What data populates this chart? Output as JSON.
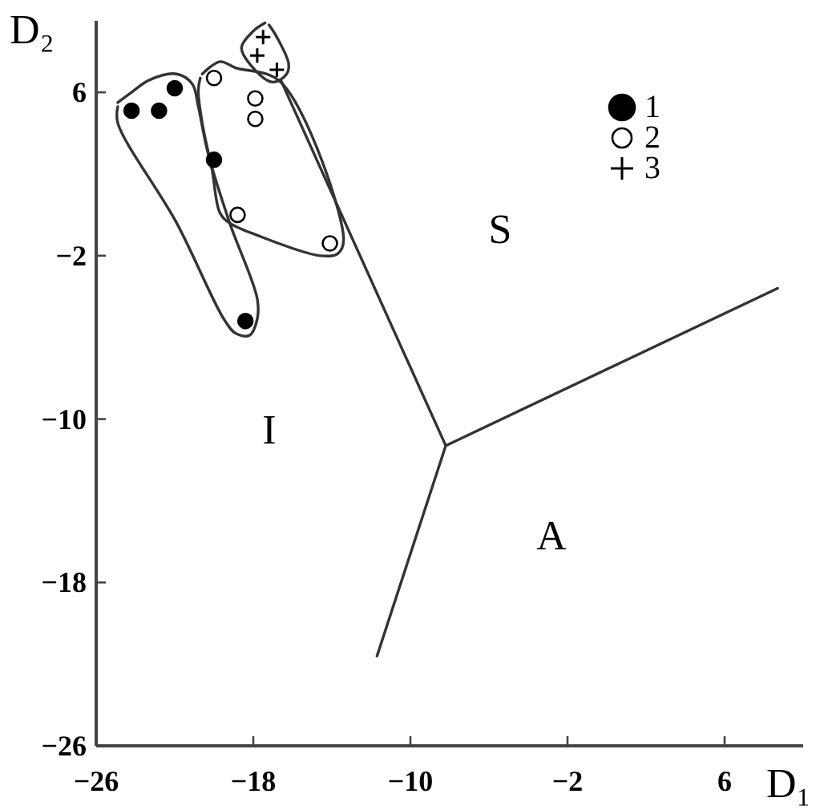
{
  "chart_data": {
    "type": "scatter",
    "xlabel": "D₁",
    "ylabel": "D₂",
    "xlim": [
      -26,
      10
    ],
    "ylim": [
      -26,
      9.5
    ],
    "xticks": [
      -26,
      -18,
      -10,
      -2,
      6
    ],
    "yticks": [
      -26,
      -18,
      -10,
      -2,
      6
    ],
    "legend": "top right",
    "grid": false,
    "series": [
      {
        "name": "1",
        "color": "#000000",
        "marker": "circle",
        "x": [
          -24.2,
          -22.8,
          -22.0,
          -20.0,
          -18.4
        ],
        "values": [
          5.1,
          5.1,
          6.2,
          2.7,
          -5.2
        ]
      },
      {
        "name": "2",
        "color": "#ffffff",
        "marker": "circle",
        "x": [
          -20.0,
          -17.9,
          -17.9,
          -18.8,
          -14.1
        ],
        "values": [
          6.7,
          5.7,
          4.7,
          0.0,
          -1.4
        ]
      },
      {
        "name": "3",
        "color": "#000000",
        "marker": "cross",
        "x": [
          -17.5,
          -17.8,
          -16.8
        ],
        "values": [
          8.7,
          7.8,
          7.1
        ]
      },
      {
        "type": "line",
        "color": "#333333",
        "x": [
          -24.9,
          -24.2,
          -23.3,
          -21.9,
          -21.1,
          -20.8,
          -20.3,
          -19.2,
          -17.8,
          -17.8,
          -18.2,
          -18.9,
          -19.5,
          -21.9,
          -24.9,
          -24.9
        ],
        "values": [
          5.5,
          6.0,
          6.6,
          6.9,
          6.4,
          5.3,
          3.0,
          -0.4,
          -4.1,
          -5.1,
          -5.9,
          -5.8,
          -5.1,
          -0.4,
          4.5,
          5.3
        ]
      },
      {
        "type": "line",
        "color": "#333333",
        "x": [
          -20.6,
          -19.7,
          -18.9,
          -16.6,
          -13.4,
          -13.7,
          -14.6,
          -17.8,
          -19.2,
          -19.7,
          -20.1,
          -20.6,
          -20.8,
          -20.7
        ],
        "values": [
          6.9,
          7.5,
          7.2,
          6.5,
          -1.2,
          -1.9,
          -2.0,
          -1.0,
          -0.4,
          0.1,
          2.2,
          4.5,
          6.1,
          6.7
        ]
      },
      {
        "type": "line",
        "color": "#333333",
        "x": [
          -17.4,
          -18.0,
          -18.6,
          -18.1,
          -17.0,
          -16.3,
          -16.2,
          -16.8,
          -17.2
        ],
        "values": [
          9.4,
          9.0,
          8.2,
          7.3,
          6.5,
          6.9,
          7.4,
          8.7,
          9.3
        ]
      },
      {
        "type": "line",
        "color": "#333333",
        "x": [
          -16.6,
          -8.2,
          8.7
        ],
        "values": [
          6.6,
          -11.3,
          -3.6
        ]
      },
      {
        "type": "line",
        "color": "#333333",
        "x": [
          -8.2,
          -11.7
        ],
        "values": [
          -11.3,
          -21.6
        ]
      }
    ],
    "annotations": [
      "S",
      "I",
      "A"
    ]
  }
}
